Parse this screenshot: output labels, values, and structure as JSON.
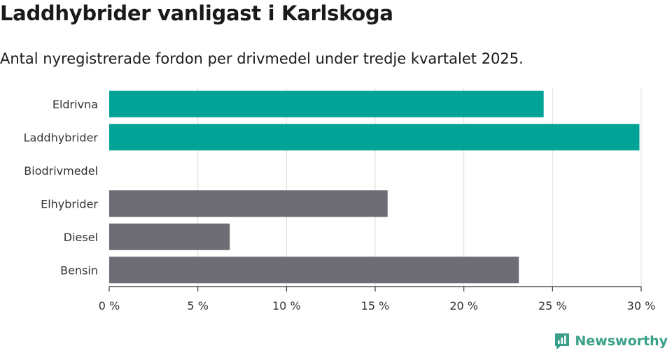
{
  "header": {
    "title": "Laddhybrider vanligast i Karlskoga",
    "subtitle": "Antal nyregistrerade fordon per drivmedel under tredje kvartalet 2025."
  },
  "brand": {
    "name": "Newsworthy",
    "icon": "newsworthy-logo-icon",
    "color": "#3aa08a"
  },
  "chart_data": {
    "type": "bar",
    "orientation": "horizontal",
    "title": "Laddhybrider vanligast i Karlskoga",
    "subtitle": "Antal nyregistrerade fordon per drivmedel under tredje kvartalet 2025.",
    "categories": [
      "Eldrivna",
      "Laddhybrider",
      "Biodrivmedel",
      "Elhybrider",
      "Diesel",
      "Bensin"
    ],
    "values": [
      24.5,
      29.9,
      0,
      15.7,
      6.8,
      23.1
    ],
    "colors": [
      "#00a396",
      "#00a396",
      "#00a396",
      "#6e6d75",
      "#6e6d75",
      "#6e6d75"
    ],
    "xlim": [
      0,
      30
    ],
    "xticks": [
      0,
      5,
      10,
      15,
      20,
      25,
      30
    ],
    "xtick_labels": [
      "0 %",
      "5 %",
      "10 %",
      "15 %",
      "20 %",
      "25 %",
      "30 %"
    ],
    "xlabel": "",
    "ylabel": "",
    "grid": true
  }
}
